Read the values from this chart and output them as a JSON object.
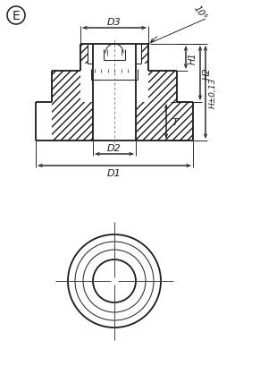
{
  "bg_color": "#ffffff",
  "line_color": "#1a1a1a",
  "figsize": [
    2.91,
    4.1
  ],
  "dpi": 100,
  "label_E": "E",
  "label_D3": "D3",
  "label_D2": "D2",
  "label_D1": "D1",
  "label_H1": "H1",
  "label_H2": "H2",
  "label_H": "H±0,13",
  "label_T": "T",
  "label_angle": "10°"
}
